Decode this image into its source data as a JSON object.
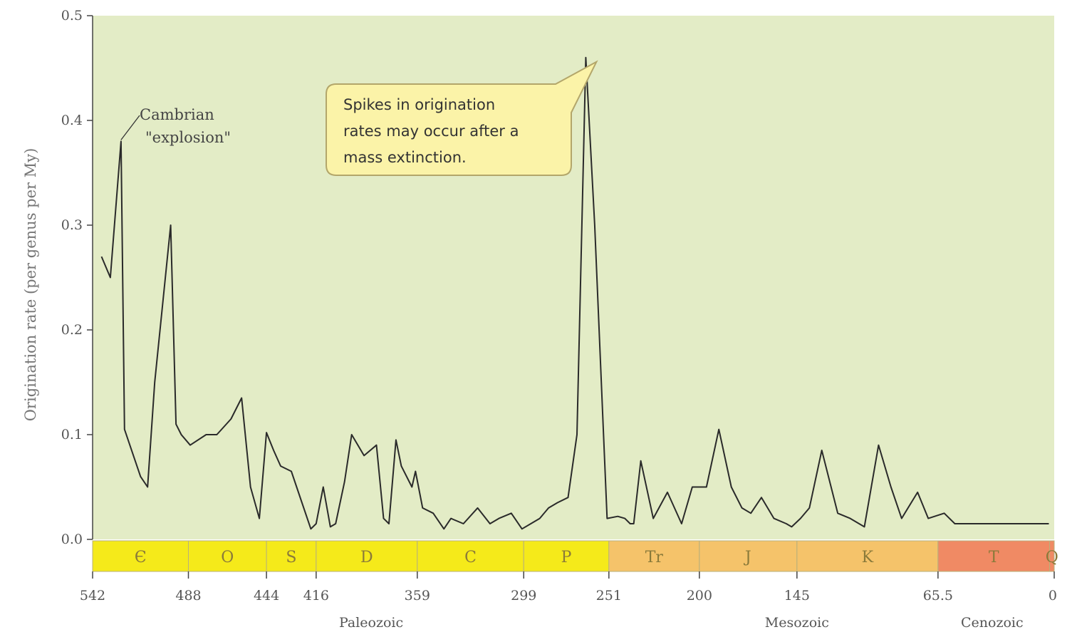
{
  "chart_data": {
    "type": "line",
    "title": "",
    "xlabel": "",
    "ylabel": "Origination rate (per genus per My)",
    "xlim": [
      542,
      0
    ],
    "ylim": [
      0.0,
      0.5
    ],
    "y_ticks": [
      "0.0",
      "0.1",
      "0.2",
      "0.3",
      "0.4",
      "0.5"
    ],
    "x_ticks": [
      {
        "value": 542,
        "label": "542"
      },
      {
        "value": 488,
        "label": "488"
      },
      {
        "value": 444,
        "label": "444"
      },
      {
        "value": 416,
        "label": "416"
      },
      {
        "value": 359,
        "label": "359"
      },
      {
        "value": 299,
        "label": "299"
      },
      {
        "value": 251,
        "label": "251"
      },
      {
        "value": 200,
        "label": "200"
      },
      {
        "value": 145,
        "label": "145"
      },
      {
        "value": 65.5,
        "label": "65.5"
      },
      {
        "value": 0,
        "label": "0"
      }
    ],
    "periods": [
      {
        "label": "Є",
        "start": 542,
        "end": 488,
        "color": "#f5ea1a"
      },
      {
        "label": "O",
        "start": 488,
        "end": 444,
        "color": "#f5ea1a"
      },
      {
        "label": "S",
        "start": 444,
        "end": 416,
        "color": "#f5ea1a"
      },
      {
        "label": "D",
        "start": 416,
        "end": 359,
        "color": "#f5ea1a"
      },
      {
        "label": "C",
        "start": 359,
        "end": 299,
        "color": "#f5ea1a"
      },
      {
        "label": "P",
        "start": 299,
        "end": 251,
        "color": "#f5ea1a"
      },
      {
        "label": "Tr",
        "start": 251,
        "end": 200,
        "color": "#f5c36a"
      },
      {
        "label": "J",
        "start": 200,
        "end": 145,
        "color": "#f5c36a"
      },
      {
        "label": "K",
        "start": 145,
        "end": 65.5,
        "color": "#f5c36a"
      },
      {
        "label": "T",
        "start": 65.5,
        "end": 2.6,
        "color": "#f08a64"
      },
      {
        "label": "Q",
        "start": 2.6,
        "end": 0,
        "color": "#f08a64"
      }
    ],
    "eras": [
      {
        "label": "Paleozoic",
        "position": 385
      },
      {
        "label": "Mesozoic",
        "position": 145
      },
      {
        "label": "Cenozoic",
        "position": 35
      }
    ],
    "series": [
      {
        "name": "",
        "x": [
          537,
          532,
          526,
          524,
          521,
          515,
          511,
          507,
          498,
          495,
          492,
          487,
          478,
          472,
          464,
          458,
          453,
          448,
          444,
          440,
          436,
          430,
          424,
          419,
          416,
          412,
          408,
          405,
          400,
          396,
          389,
          382,
          378,
          375,
          371,
          368,
          362,
          360,
          356,
          350,
          344,
          340,
          333,
          325,
          318,
          313,
          306,
          300,
          295,
          290,
          285,
          280,
          274,
          269,
          264,
          259,
          254,
          252,
          246,
          242,
          239,
          237,
          233,
          226,
          218,
          210,
          204,
          200,
          196,
          189,
          182,
          176,
          171,
          165,
          158,
          151,
          148,
          143,
          138,
          131,
          122,
          115,
          107,
          99,
          92,
          86,
          77,
          71,
          62,
          56,
          50,
          44,
          40,
          36,
          32,
          27,
          20,
          12,
          3
        ],
        "y": [
          0.27,
          0.25,
          0.38,
          0.105,
          0.09,
          0.06,
          0.05,
          0.15,
          0.3,
          0.11,
          0.1,
          0.09,
          0.1,
          0.1,
          0.115,
          0.135,
          0.05,
          0.02,
          0.102,
          0.085,
          0.07,
          0.065,
          0.035,
          0.01,
          0.015,
          0.05,
          0.012,
          0.015,
          0.055,
          0.1,
          0.08,
          0.09,
          0.02,
          0.015,
          0.095,
          0.07,
          0.05,
          0.065,
          0.03,
          0.025,
          0.01,
          0.02,
          0.015,
          0.03,
          0.015,
          0.02,
          0.025,
          0.01,
          0.015,
          0.02,
          0.03,
          0.035,
          0.04,
          0.1,
          0.46,
          0.3,
          0.1,
          0.02,
          0.022,
          0.02,
          0.015,
          0.015,
          0.075,
          0.02,
          0.045,
          0.015,
          0.05,
          0.05,
          0.05,
          0.105,
          0.05,
          0.03,
          0.025,
          0.04,
          0.02,
          0.015,
          0.012,
          0.02,
          0.03,
          0.085,
          0.025,
          0.02,
          0.012,
          0.09,
          0.05,
          0.02,
          0.045,
          0.02,
          0.025,
          0.015,
          0.015,
          0.015,
          0.015,
          0.015,
          0.015,
          0.015,
          0.015,
          0.015,
          0.015
        ]
      }
    ],
    "annotations": [
      {
        "lines": [
          "Cambrian",
          "\"explosion\""
        ],
        "points_to": {
          "x": 526,
          "y": 0.38
        }
      },
      {
        "lines": [
          "Spikes in origination",
          "rates may occur after a",
          "mass extinction."
        ],
        "points_to": {
          "x": 254,
          "y": 0.46
        },
        "style": "callout"
      }
    ],
    "grid": false,
    "colors": {
      "plot_background": "#e3ecc6",
      "line": "#2a2a2a",
      "callout_fill": "#fbf3a8",
      "callout_border": "#b3a66a"
    }
  }
}
